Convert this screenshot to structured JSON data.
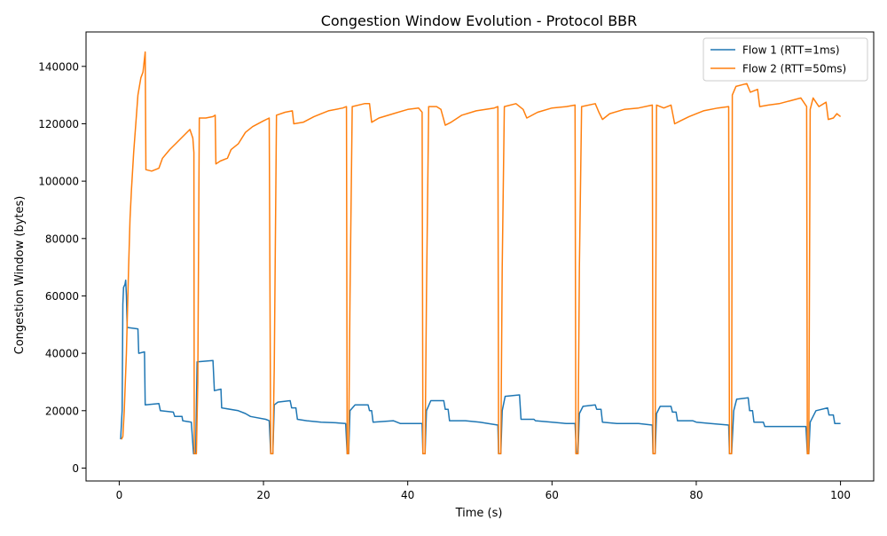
{
  "chart_data": {
    "type": "line",
    "title": "Congestion Window Evolution - Protocol BBR",
    "xlabel": "Time (s)",
    "ylabel": "Congestion Window (bytes)",
    "xlim": [
      -4.6,
      104.6
    ],
    "ylim": [
      -4500,
      152000
    ],
    "x_ticks": [
      0,
      20,
      40,
      60,
      80,
      100
    ],
    "y_ticks": [
      0,
      20000,
      40000,
      60000,
      80000,
      100000,
      120000,
      140000
    ],
    "grid": false,
    "legend_position": "top-right",
    "series": [
      {
        "name": "Flow 1 (RTT=1ms)",
        "color": "#1f77b4",
        "points": [
          [
            0.2,
            10000
          ],
          [
            0.4,
            20000
          ],
          [
            0.5,
            57000
          ],
          [
            0.6,
            63000
          ],
          [
            0.8,
            64000
          ],
          [
            0.9,
            65500
          ],
          [
            1.0,
            60000
          ],
          [
            1.1,
            49000
          ],
          [
            2.6,
            48500
          ],
          [
            2.7,
            40000
          ],
          [
            3.5,
            40500
          ],
          [
            3.6,
            22000
          ],
          [
            5.5,
            22500
          ],
          [
            5.7,
            20000
          ],
          [
            7.5,
            19500
          ],
          [
            7.7,
            18000
          ],
          [
            8.7,
            18000
          ],
          [
            8.8,
            16500
          ],
          [
            10.0,
            16000
          ],
          [
            10.3,
            5000
          ],
          [
            10.6,
            5000
          ],
          [
            10.8,
            37000
          ],
          [
            13.0,
            37500
          ],
          [
            13.2,
            27000
          ],
          [
            14.1,
            27500
          ],
          [
            14.2,
            21000
          ],
          [
            16.5,
            20000
          ],
          [
            17.5,
            19000
          ],
          [
            18.2,
            18000
          ],
          [
            20.3,
            17000
          ],
          [
            20.8,
            16500
          ],
          [
            21.0,
            5000
          ],
          [
            21.3,
            5000
          ],
          [
            21.5,
            22000
          ],
          [
            22.0,
            23000
          ],
          [
            23.7,
            23500
          ],
          [
            23.9,
            21000
          ],
          [
            24.5,
            21000
          ],
          [
            24.7,
            17000
          ],
          [
            26.0,
            16500
          ],
          [
            28.0,
            16000
          ],
          [
            30.0,
            15800
          ],
          [
            31.4,
            15500
          ],
          [
            31.6,
            5000
          ],
          [
            31.8,
            5000
          ],
          [
            32.0,
            20000
          ],
          [
            32.7,
            22000
          ],
          [
            34.5,
            22000
          ],
          [
            34.7,
            20000
          ],
          [
            35.0,
            20000
          ],
          [
            35.2,
            16000
          ],
          [
            38.0,
            16500
          ],
          [
            39.0,
            15500
          ],
          [
            42.0,
            15500
          ],
          [
            42.1,
            5000
          ],
          [
            42.4,
            5000
          ],
          [
            42.6,
            20000
          ],
          [
            43.2,
            23500
          ],
          [
            45.0,
            23500
          ],
          [
            45.2,
            20500
          ],
          [
            45.6,
            20500
          ],
          [
            45.8,
            16500
          ],
          [
            48.0,
            16500
          ],
          [
            50.0,
            16000
          ],
          [
            52.5,
            15000
          ],
          [
            52.6,
            5000
          ],
          [
            52.9,
            5000
          ],
          [
            53.1,
            20000
          ],
          [
            53.5,
            25000
          ],
          [
            55.5,
            25500
          ],
          [
            55.7,
            17000
          ],
          [
            57.5,
            17000
          ],
          [
            57.7,
            16500
          ],
          [
            60.0,
            16000
          ],
          [
            62.0,
            15500
          ],
          [
            63.2,
            15500
          ],
          [
            63.4,
            5000
          ],
          [
            63.6,
            5000
          ],
          [
            63.8,
            19000
          ],
          [
            64.3,
            21500
          ],
          [
            66.0,
            22000
          ],
          [
            66.2,
            20500
          ],
          [
            66.8,
            20500
          ],
          [
            67.0,
            16000
          ],
          [
            69.0,
            15500
          ],
          [
            72.0,
            15500
          ],
          [
            73.9,
            15000
          ],
          [
            74.0,
            5000
          ],
          [
            74.3,
            5000
          ],
          [
            74.5,
            19000
          ],
          [
            75.0,
            21500
          ],
          [
            76.5,
            21500
          ],
          [
            76.7,
            19500
          ],
          [
            77.2,
            19500
          ],
          [
            77.4,
            16500
          ],
          [
            79.5,
            16500
          ],
          [
            80.0,
            16000
          ],
          [
            82.0,
            15500
          ],
          [
            84.5,
            15000
          ],
          [
            84.6,
            5000
          ],
          [
            84.9,
            5000
          ],
          [
            85.2,
            20000
          ],
          [
            85.6,
            24000
          ],
          [
            87.2,
            24500
          ],
          [
            87.4,
            20000
          ],
          [
            87.8,
            20000
          ],
          [
            88.0,
            16000
          ],
          [
            89.3,
            16000
          ],
          [
            89.5,
            14500
          ],
          [
            92.0,
            14500
          ],
          [
            95.2,
            14500
          ],
          [
            95.4,
            5000
          ],
          [
            95.6,
            5000
          ],
          [
            95.8,
            16000
          ],
          [
            96.6,
            20000
          ],
          [
            98.2,
            21000
          ],
          [
            98.4,
            18500
          ],
          [
            99.0,
            18500
          ],
          [
            99.2,
            15500
          ],
          [
            100.0,
            15500
          ]
        ]
      },
      {
        "name": "Flow 2 (RTT=50ms)",
        "color": "#ff7f0e",
        "points": [
          [
            0.3,
            10000
          ],
          [
            0.5,
            11000
          ],
          [
            0.7,
            20000
          ],
          [
            1.0,
            40000
          ],
          [
            1.3,
            70000
          ],
          [
            1.5,
            87000
          ],
          [
            1.7,
            97000
          ],
          [
            2.0,
            110000
          ],
          [
            2.3,
            120000
          ],
          [
            2.6,
            130000
          ],
          [
            3.0,
            136000
          ],
          [
            3.3,
            138000
          ],
          [
            3.6,
            145000
          ],
          [
            3.7,
            104000
          ],
          [
            4.5,
            103500
          ],
          [
            5.5,
            104500
          ],
          [
            6.0,
            108000
          ],
          [
            7.0,
            111000
          ],
          [
            8.0,
            113500
          ],
          [
            9.0,
            116000
          ],
          [
            9.8,
            118000
          ],
          [
            10.2,
            115000
          ],
          [
            10.35,
            110000
          ],
          [
            10.4,
            5000
          ],
          [
            10.7,
            5000
          ],
          [
            10.9,
            30000
          ],
          [
            11.1,
            122000
          ],
          [
            12.0,
            122000
          ],
          [
            13.0,
            122500
          ],
          [
            13.3,
            123000
          ],
          [
            13.4,
            106000
          ],
          [
            14.0,
            107000
          ],
          [
            15.0,
            108000
          ],
          [
            15.5,
            111000
          ],
          [
            16.5,
            113000
          ],
          [
            17.5,
            117000
          ],
          [
            18.5,
            119000
          ],
          [
            20.0,
            121000
          ],
          [
            20.8,
            122000
          ],
          [
            21.0,
            5000
          ],
          [
            21.3,
            5000
          ],
          [
            21.5,
            35000
          ],
          [
            21.8,
            123000
          ],
          [
            23.0,
            124000
          ],
          [
            24.0,
            124500
          ],
          [
            24.2,
            120000
          ],
          [
            25.5,
            120500
          ],
          [
            27.0,
            122500
          ],
          [
            29.0,
            124500
          ],
          [
            31.0,
            125500
          ],
          [
            31.5,
            126000
          ],
          [
            31.6,
            5000
          ],
          [
            31.8,
            5000
          ],
          [
            32.0,
            60000
          ],
          [
            32.3,
            126000
          ],
          [
            34.0,
            127000
          ],
          [
            34.7,
            127000
          ],
          [
            35.0,
            120500
          ],
          [
            36.0,
            122000
          ],
          [
            38.0,
            123500
          ],
          [
            40.0,
            125000
          ],
          [
            41.5,
            125500
          ],
          [
            42.0,
            124000
          ],
          [
            42.1,
            5000
          ],
          [
            42.4,
            5000
          ],
          [
            42.6,
            60000
          ],
          [
            42.9,
            126000
          ],
          [
            44.0,
            126000
          ],
          [
            44.6,
            125000
          ],
          [
            45.2,
            119500
          ],
          [
            46.0,
            120500
          ],
          [
            47.5,
            123000
          ],
          [
            49.5,
            124500
          ],
          [
            52.0,
            125500
          ],
          [
            52.5,
            126000
          ],
          [
            52.6,
            5000
          ],
          [
            52.9,
            5000
          ],
          [
            53.1,
            70000
          ],
          [
            53.4,
            126000
          ],
          [
            55.0,
            127000
          ],
          [
            56.0,
            125000
          ],
          [
            56.5,
            122000
          ],
          [
            58.0,
            124000
          ],
          [
            60.0,
            125500
          ],
          [
            62.0,
            126000
          ],
          [
            63.2,
            126500
          ],
          [
            63.3,
            5000
          ],
          [
            63.6,
            5000
          ],
          [
            63.8,
            70000
          ],
          [
            64.1,
            126000
          ],
          [
            66.0,
            127000
          ],
          [
            66.5,
            124000
          ],
          [
            67.0,
            121500
          ],
          [
            68.0,
            123500
          ],
          [
            70.0,
            125000
          ],
          [
            72.0,
            125500
          ],
          [
            73.9,
            126500
          ],
          [
            74.0,
            5000
          ],
          [
            74.3,
            5000
          ],
          [
            74.5,
            126500
          ],
          [
            75.5,
            125500
          ],
          [
            76.5,
            126500
          ],
          [
            77.0,
            120000
          ],
          [
            77.8,
            121000
          ],
          [
            79.0,
            122500
          ],
          [
            81.0,
            124500
          ],
          [
            83.0,
            125500
          ],
          [
            84.5,
            126000
          ],
          [
            84.6,
            5000
          ],
          [
            84.9,
            5000
          ],
          [
            85.0,
            130000
          ],
          [
            85.5,
            133000
          ],
          [
            87.0,
            134000
          ],
          [
            87.5,
            131000
          ],
          [
            88.5,
            132000
          ],
          [
            88.8,
            126000
          ],
          [
            90.0,
            126500
          ],
          [
            91.5,
            127000
          ],
          [
            93.0,
            128000
          ],
          [
            94.5,
            129000
          ],
          [
            95.3,
            126000
          ],
          [
            95.4,
            5000
          ],
          [
            95.6,
            5000
          ],
          [
            95.8,
            125000
          ],
          [
            96.2,
            129000
          ],
          [
            97.0,
            126000
          ],
          [
            98.0,
            127500
          ],
          [
            98.3,
            121500
          ],
          [
            99.0,
            122000
          ],
          [
            99.5,
            123500
          ],
          [
            100.0,
            122500
          ]
        ]
      }
    ]
  }
}
